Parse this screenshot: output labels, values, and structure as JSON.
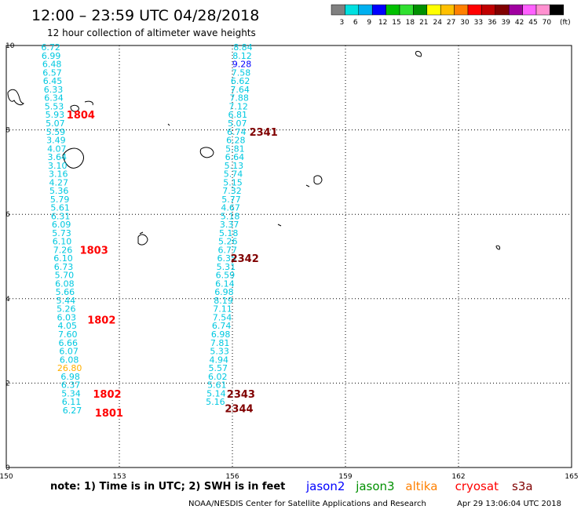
{
  "header": {
    "title": "12:00 – 23:59 UTC 04/28/2018",
    "subtitle": "12 hour collection of altimeter wave heights"
  },
  "legend": {
    "colors": [
      "#808080",
      "#00e0e0",
      "#00b0f0",
      "#0000ff",
      "#00c000",
      "#30e030",
      "#009000",
      "#ffff00",
      "#ffc000",
      "#ff8000",
      "#ff0000",
      "#c00000",
      "#800000",
      "#a000a0",
      "#ff60ff",
      "#ff90d0",
      "#000000"
    ],
    "labels": [
      "3",
      "6",
      "9",
      "12",
      "15",
      "18",
      "21",
      "24",
      "27",
      "30",
      "33",
      "36",
      "39",
      "42",
      "45",
      "70",
      "(ft)"
    ]
  },
  "footer": {
    "note": "note:  1) Time is in UTC;  2) SWH is in feet",
    "credit": "NOAA/NESDIS Center for Satellite Applications and Research",
    "timestamp": "Apr 29 13:06:04 UTC 2018"
  },
  "satellites": [
    {
      "name": "jason2",
      "color": "#0000ff"
    },
    {
      "name": "jason3",
      "color": "#009000"
    },
    {
      "name": "altika",
      "color": "#ff8000"
    },
    {
      "name": "cryosat",
      "color": "#ff0000"
    },
    {
      "name": "s3a",
      "color": "#800000"
    }
  ],
  "chart_data": {
    "type": "scatter",
    "xlim": [
      150,
      165
    ],
    "ylim": [
      0,
      10
    ],
    "x_ticks": [
      "150",
      "153",
      "156",
      "159",
      "162",
      "165"
    ],
    "y_ticks": [
      "0",
      "2",
      "4",
      "6",
      "8",
      "10"
    ],
    "grid": true,
    "track_west": {
      "points": [
        {
          "x": 151.18,
          "y": 9.96,
          "v": "6.72",
          "c": "#00c8e0"
        },
        {
          "x": 151.19,
          "y": 9.76,
          "v": "6.99",
          "c": "#00c8e0"
        },
        {
          "x": 151.21,
          "y": 9.56,
          "v": "6.48",
          "c": "#00c8e0"
        },
        {
          "x": 151.22,
          "y": 9.36,
          "v": "6.57",
          "c": "#00c8e0"
        },
        {
          "x": 151.23,
          "y": 9.16,
          "v": "6.45",
          "c": "#00c8e0"
        },
        {
          "x": 151.25,
          "y": 8.96,
          "v": "6.33",
          "c": "#00c8e0"
        },
        {
          "x": 151.26,
          "y": 8.76,
          "v": "6.34",
          "c": "#00c8e0"
        },
        {
          "x": 151.27,
          "y": 8.56,
          "v": "5.53",
          "c": "#00c8e0"
        },
        {
          "x": 151.29,
          "y": 8.36,
          "v": "5.93",
          "c": "#00c8e0"
        },
        {
          "x": 151.3,
          "y": 8.16,
          "v": "5.07",
          "c": "#00c8e0"
        },
        {
          "x": 151.31,
          "y": 7.96,
          "v": "5.59",
          "c": "#00c8e0"
        },
        {
          "x": 151.32,
          "y": 7.76,
          "v": "3.49",
          "c": "#00c8e0"
        },
        {
          "x": 151.34,
          "y": 7.56,
          "v": "4.07",
          "c": "#00c8e0"
        },
        {
          "x": 151.35,
          "y": 7.36,
          "v": "3.64",
          "c": "#00c8e0"
        },
        {
          "x": 151.36,
          "y": 7.16,
          "v": "3.10",
          "c": "#00c8e0"
        },
        {
          "x": 151.38,
          "y": 6.96,
          "v": "3.16",
          "c": "#00c8e0"
        },
        {
          "x": 151.39,
          "y": 6.76,
          "v": "4.27",
          "c": "#00c8e0"
        },
        {
          "x": 151.4,
          "y": 6.56,
          "v": "5.36",
          "c": "#00c8e0"
        },
        {
          "x": 151.42,
          "y": 6.36,
          "v": "5.79",
          "c": "#00c8e0"
        },
        {
          "x": 151.43,
          "y": 6.16,
          "v": "5.61",
          "c": "#00c8e0"
        },
        {
          "x": 151.44,
          "y": 5.96,
          "v": "6.31",
          "c": "#00c8e0"
        },
        {
          "x": 151.46,
          "y": 5.76,
          "v": "6.09",
          "c": "#00c8e0"
        },
        {
          "x": 151.47,
          "y": 5.56,
          "v": "5.73",
          "c": "#00c8e0"
        },
        {
          "x": 151.48,
          "y": 5.36,
          "v": "6.10",
          "c": "#00c8e0"
        },
        {
          "x": 151.5,
          "y": 5.16,
          "v": "7.26",
          "c": "#00c8e0"
        },
        {
          "x": 151.51,
          "y": 4.96,
          "v": "6.10",
          "c": "#00c8e0"
        },
        {
          "x": 151.52,
          "y": 4.76,
          "v": "6.73",
          "c": "#00c8e0"
        },
        {
          "x": 151.54,
          "y": 4.56,
          "v": "5.70",
          "c": "#00c8e0"
        },
        {
          "x": 151.55,
          "y": 4.36,
          "v": "6.08",
          "c": "#00c8e0"
        },
        {
          "x": 151.56,
          "y": 4.16,
          "v": "5.66",
          "c": "#00c8e0"
        },
        {
          "x": 151.58,
          "y": 3.96,
          "v": "5.44",
          "c": "#00c8e0"
        },
        {
          "x": 151.59,
          "y": 3.76,
          "v": "5.26",
          "c": "#00c8e0"
        },
        {
          "x": 151.6,
          "y": 3.56,
          "v": "6.03",
          "c": "#00c8e0"
        },
        {
          "x": 151.62,
          "y": 3.36,
          "v": "4.05",
          "c": "#00c8e0"
        },
        {
          "x": 151.63,
          "y": 3.16,
          "v": "7.60",
          "c": "#00c8e0"
        },
        {
          "x": 151.64,
          "y": 2.96,
          "v": "6.66",
          "c": "#00c8e0"
        },
        {
          "x": 151.66,
          "y": 2.76,
          "v": "6.07",
          "c": "#00c8e0"
        },
        {
          "x": 151.67,
          "y": 2.56,
          "v": "6.08",
          "c": "#00c8e0"
        },
        {
          "x": 151.68,
          "y": 2.36,
          "v": "26.80",
          "c": "#ffb000"
        },
        {
          "x": 151.7,
          "y": 2.16,
          "v": "6.98",
          "c": "#00c8e0"
        },
        {
          "x": 151.71,
          "y": 1.96,
          "v": "6.37",
          "c": "#00c8e0"
        },
        {
          "x": 151.72,
          "y": 1.76,
          "v": "5.34",
          "c": "#00c8e0"
        },
        {
          "x": 151.73,
          "y": 1.56,
          "v": "6.11",
          "c": "#00c8e0"
        },
        {
          "x": 151.75,
          "y": 1.36,
          "v": "6.27",
          "c": "#00c8e0"
        }
      ]
    },
    "track_east": {
      "points": [
        {
          "x": 156.28,
          "y": 9.96,
          "v": "8.84",
          "c": "#00c8e0"
        },
        {
          "x": 156.26,
          "y": 9.76,
          "v": "8.12",
          "c": "#00c8e0"
        },
        {
          "x": 156.25,
          "y": 9.56,
          "v": "9.28",
          "c": "#0000ff"
        },
        {
          "x": 156.23,
          "y": 9.36,
          "v": "7.58",
          "c": "#00c8e0"
        },
        {
          "x": 156.21,
          "y": 9.16,
          "v": "6.62",
          "c": "#00c8e0"
        },
        {
          "x": 156.2,
          "y": 8.96,
          "v": "7.64",
          "c": "#00c8e0"
        },
        {
          "x": 156.18,
          "y": 8.76,
          "v": "7.88",
          "c": "#00c8e0"
        },
        {
          "x": 156.16,
          "y": 8.56,
          "v": "7.12",
          "c": "#00c8e0"
        },
        {
          "x": 156.14,
          "y": 8.36,
          "v": "6.81",
          "c": "#00c8e0"
        },
        {
          "x": 156.13,
          "y": 8.16,
          "v": "5.07",
          "c": "#00c8e0"
        },
        {
          "x": 156.11,
          "y": 7.96,
          "v": "6.74",
          "c": "#00c8e0"
        },
        {
          "x": 156.09,
          "y": 7.76,
          "v": "6.28",
          "c": "#00c8e0"
        },
        {
          "x": 156.07,
          "y": 7.56,
          "v": "5.81",
          "c": "#00c8e0"
        },
        {
          "x": 156.06,
          "y": 7.36,
          "v": "6.64",
          "c": "#00c8e0"
        },
        {
          "x": 156.04,
          "y": 7.16,
          "v": "5.13",
          "c": "#00c8e0"
        },
        {
          "x": 156.02,
          "y": 6.96,
          "v": "5.74",
          "c": "#00c8e0"
        },
        {
          "x": 156.01,
          "y": 6.76,
          "v": "5.15",
          "c": "#00c8e0"
        },
        {
          "x": 155.99,
          "y": 6.56,
          "v": "7.32",
          "c": "#00c8e0"
        },
        {
          "x": 155.97,
          "y": 6.36,
          "v": "5.77",
          "c": "#00c8e0"
        },
        {
          "x": 155.95,
          "y": 6.16,
          "v": "4.67",
          "c": "#00c8e0"
        },
        {
          "x": 155.94,
          "y": 5.96,
          "v": "5.18",
          "c": "#00c8e0"
        },
        {
          "x": 155.92,
          "y": 5.76,
          "v": "3.37",
          "c": "#00c8e0"
        },
        {
          "x": 155.9,
          "y": 5.56,
          "v": "5.18",
          "c": "#00c8e0"
        },
        {
          "x": 155.88,
          "y": 5.36,
          "v": "5.26",
          "c": "#00c8e0"
        },
        {
          "x": 155.87,
          "y": 5.16,
          "v": "6.77",
          "c": "#00c8e0"
        },
        {
          "x": 155.85,
          "y": 4.96,
          "v": "6.35",
          "c": "#00c8e0"
        },
        {
          "x": 155.83,
          "y": 4.76,
          "v": "5.31",
          "c": "#00c8e0"
        },
        {
          "x": 155.81,
          "y": 4.56,
          "v": "6.59",
          "c": "#00c8e0"
        },
        {
          "x": 155.8,
          "y": 4.36,
          "v": "6.14",
          "c": "#00c8e0"
        },
        {
          "x": 155.78,
          "y": 4.16,
          "v": "6.98",
          "c": "#00c8e0"
        },
        {
          "x": 155.76,
          "y": 3.96,
          "v": "8.19",
          "c": "#00c8e0"
        },
        {
          "x": 155.74,
          "y": 3.76,
          "v": "7.11",
          "c": "#00c8e0"
        },
        {
          "x": 155.73,
          "y": 3.56,
          "v": "7.54",
          "c": "#00c8e0"
        },
        {
          "x": 155.71,
          "y": 3.36,
          "v": "6.74",
          "c": "#00c8e0"
        },
        {
          "x": 155.69,
          "y": 3.16,
          "v": "6.98",
          "c": "#00c8e0"
        },
        {
          "x": 155.67,
          "y": 2.96,
          "v": "7.81",
          "c": "#00c8e0"
        },
        {
          "x": 155.66,
          "y": 2.76,
          "v": "5.33",
          "c": "#00c8e0"
        },
        {
          "x": 155.64,
          "y": 2.56,
          "v": "4.94",
          "c": "#00c8e0"
        },
        {
          "x": 155.62,
          "y": 2.36,
          "v": "5.57",
          "c": "#00c8e0"
        },
        {
          "x": 155.61,
          "y": 2.16,
          "v": "6.02",
          "c": "#00c8e0"
        },
        {
          "x": 155.59,
          "y": 1.96,
          "v": "5.61",
          "c": "#00c8e0"
        },
        {
          "x": 155.57,
          "y": 1.76,
          "v": "5.14",
          "c": "#00c8e0"
        },
        {
          "x": 155.55,
          "y": 1.56,
          "v": "5.16",
          "c": "#00c8e0"
        }
      ]
    },
    "time_labels": [
      {
        "t": "1804",
        "x": 151.6,
        "y": 8.36,
        "c": "#ff0000"
      },
      {
        "t": "1803",
        "x": 151.95,
        "y": 5.16,
        "c": "#ff0000"
      },
      {
        "t": "1802",
        "x": 152.15,
        "y": 3.5,
        "c": "#ff0000"
      },
      {
        "t": "1802",
        "x": 152.3,
        "y": 1.75,
        "c": "#ff0000"
      },
      {
        "t": "1801",
        "x": 152.35,
        "y": 1.3,
        "c": "#ff0000"
      },
      {
        "t": "2341",
        "x": 156.45,
        "y": 7.96,
        "c": "#800000"
      },
      {
        "t": "2342",
        "x": 155.95,
        "y": 4.96,
        "c": "#800000"
      },
      {
        "t": "2343",
        "x": 155.85,
        "y": 1.75,
        "c": "#800000"
      },
      {
        "t": "2344",
        "x": 155.8,
        "y": 1.4,
        "c": "#800000"
      }
    ]
  }
}
